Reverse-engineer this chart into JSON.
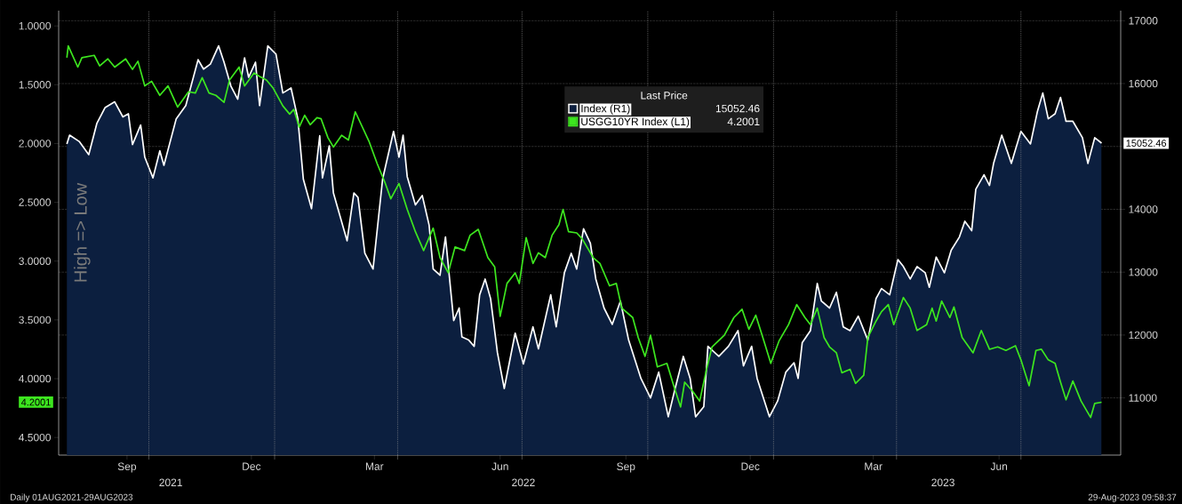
{
  "chart_data": {
    "type": "line",
    "ylabel": "High => Low",
    "legend_title": "Last Price",
    "legend": "top",
    "grid": true,
    "annotations": [
      "Daily 01AUG2021-29AUG2023",
      "29-Aug-2023 09:58:37"
    ],
    "xlim": [
      "2021-07-27",
      "2023-09-12"
    ],
    "xticks": [
      {
        "value": "2021-09-15",
        "label": "Sep"
      },
      {
        "value": "2021-10-01",
        "label": null
      },
      {
        "value": "2021-12-15",
        "label": "Dec"
      },
      {
        "value": "2022-01-01",
        "label": null
      },
      {
        "value": "2022-03-15",
        "label": "Mar"
      },
      {
        "value": "2022-04-01",
        "label": null
      },
      {
        "value": "2022-06-15",
        "label": "Jun"
      },
      {
        "value": "2022-07-01",
        "label": null
      },
      {
        "value": "2022-09-15",
        "label": "Sep"
      },
      {
        "value": "2022-10-01",
        "label": null
      },
      {
        "value": "2022-12-15",
        "label": "Dec"
      },
      {
        "value": "2023-01-01",
        "label": null
      },
      {
        "value": "2023-03-15",
        "label": "Mar"
      },
      {
        "value": "2023-04-01",
        "label": null
      },
      {
        "value": "2023-06-15",
        "label": "Jun"
      },
      {
        "value": "2023-07-01",
        "label": null
      }
    ],
    "x2lim": [
      "2021-07-27",
      "2023-09-12"
    ],
    "x2ticks": [
      {
        "value": "2021-10-17",
        "label": "2021"
      },
      {
        "value": "2022-07-02",
        "label": "2022"
      },
      {
        "value": "2023-05-05",
        "label": "2023"
      }
    ],
    "ylim": [
      4.65,
      0.87
    ],
    "yticks": [
      {
        "value": 1,
        "label": "1.0000"
      },
      {
        "value": 1.5,
        "label": "1.5000"
      },
      {
        "value": 2,
        "label": "2.0000"
      },
      {
        "value": 2.5,
        "label": "2.5000"
      },
      {
        "value": 3,
        "label": "3.0000"
      },
      {
        "value": 3.5,
        "label": "3.5000"
      },
      {
        "value": 4,
        "label": "4.0000"
      },
      {
        "value": 4.2001,
        "label": "4.2001"
      },
      {
        "value": 4.5,
        "label": "4.5000"
      }
    ],
    "y2lim": [
      10090,
      17160
    ],
    "y2ticks": [
      11000,
      12000,
      13000,
      14000,
      {
        "value": 15000,
        "label": null
      },
      {
        "value": 15052.46,
        "label": "15052.46"
      },
      16000,
      17000
    ],
    "series": [
      {
        "name": "Index (R1)",
        "type": "area",
        "axis": "y2",
        "color": "#0c1f3f",
        "x": [
          "2021-08-02",
          "2021-08-04",
          "2021-08-11",
          "2021-08-18",
          "2021-08-24",
          "2021-08-30",
          "2021-09-06",
          "2021-09-12",
          "2021-09-16",
          "2021-09-19",
          "2021-09-25",
          "2021-09-28",
          "2021-10-04",
          "2021-10-09",
          "2021-10-12",
          "2021-10-21",
          "2021-10-28",
          "2021-11-06",
          "2021-11-10",
          "2021-11-15",
          "2021-11-21",
          "2021-11-25",
          "2021-11-30",
          "2021-12-05",
          "2021-12-10",
          "2021-12-13",
          "2021-12-18",
          "2021-12-21",
          "2021-12-27",
          "2022-01-02",
          "2022-01-07",
          "2022-01-13",
          "2022-01-18",
          "2022-01-22",
          "2022-01-28",
          "2022-02-03",
          "2022-02-05",
          "2022-02-10",
          "2022-02-13",
          "2022-02-23",
          "2022-02-28",
          "2022-03-03",
          "2022-03-08",
          "2022-03-14",
          "2022-03-21",
          "2022-03-29",
          "2022-04-02",
          "2022-04-05",
          "2022-04-08",
          "2022-04-14",
          "2022-04-19",
          "2022-04-24",
          "2022-04-27",
          "2022-05-02",
          "2022-05-06",
          "2022-05-12",
          "2022-05-16",
          "2022-05-18",
          "2022-05-23",
          "2022-05-27",
          "2022-05-31",
          "2022-06-04",
          "2022-06-08",
          "2022-06-13",
          "2022-06-18",
          "2022-06-26",
          "2022-07-02",
          "2022-07-09",
          "2022-07-13",
          "2022-07-22",
          "2022-07-26",
          "2022-08-01",
          "2022-08-06",
          "2022-08-10",
          "2022-08-15",
          "2022-08-20",
          "2022-08-24",
          "2022-08-30",
          "2022-09-05",
          "2022-09-11",
          "2022-09-17",
          "2022-09-26",
          "2022-10-03",
          "2022-10-09",
          "2022-10-16",
          "2022-10-21",
          "2022-10-27",
          "2022-11-01",
          "2022-11-05",
          "2022-11-11",
          "2022-11-14",
          "2022-11-22",
          "2022-11-29",
          "2022-12-06",
          "2022-12-10",
          "2022-12-16",
          "2022-12-20",
          "2022-12-29",
          "2023-01-04",
          "2023-01-10",
          "2023-01-16",
          "2023-01-19",
          "2023-01-22",
          "2023-01-28",
          "2023-02-02",
          "2023-02-05",
          "2023-02-11",
          "2023-02-16",
          "2023-02-21",
          "2023-02-26",
          "2023-03-04",
          "2023-03-11",
          "2023-03-17",
          "2023-03-21",
          "2023-03-27",
          "2023-04-02",
          "2023-04-06",
          "2023-04-11",
          "2023-04-16",
          "2023-04-22",
          "2023-04-25",
          "2023-04-30",
          "2023-05-06",
          "2023-05-11",
          "2023-05-17",
          "2023-05-21",
          "2023-05-26",
          "2023-05-29",
          "2023-06-04",
          "2023-06-08",
          "2023-06-11",
          "2023-06-17",
          "2023-06-24",
          "2023-07-01",
          "2023-07-08",
          "2023-07-13",
          "2023-07-17",
          "2023-07-21",
          "2023-07-26",
          "2023-07-30",
          "2023-08-03",
          "2023-08-08",
          "2023-08-15",
          "2023-08-19",
          "2023-08-24",
          "2023-08-29"
        ],
        "values": [
          15040,
          15180,
          15080,
          14870,
          15370,
          15620,
          15710,
          15470,
          15520,
          15030,
          15340,
          14830,
          14500,
          14930,
          14700,
          15440,
          15650,
          16380,
          16230,
          16310,
          16600,
          16340,
          15960,
          15750,
          16410,
          16100,
          16340,
          15650,
          16600,
          16470,
          15850,
          15930,
          15440,
          14480,
          14010,
          15170,
          14500,
          15010,
          14260,
          13500,
          14260,
          14190,
          13300,
          13050,
          14480,
          15240,
          14830,
          15180,
          14520,
          14070,
          14220,
          13750,
          13050,
          12950,
          13560,
          12230,
          12430,
          11970,
          11920,
          11820,
          12640,
          12890,
          12580,
          11720,
          11150,
          12030,
          11540,
          12130,
          11780,
          12640,
          12130,
          12990,
          13300,
          13050,
          13690,
          13460,
          12890,
          12430,
          12170,
          12540,
          11920,
          11310,
          11000,
          11410,
          10700,
          11150,
          11660,
          11310,
          10700,
          10860,
          11820,
          11660,
          11820,
          12070,
          11510,
          11820,
          11310,
          10700,
          10950,
          11410,
          11560,
          11310,
          11880,
          12070,
          12820,
          12540,
          12430,
          12680,
          12130,
          12070,
          12300,
          11920,
          12580,
          12740,
          12640,
          13200,
          13090,
          12890,
          13090,
          12990,
          12760,
          13240,
          12990,
          13350,
          13560,
          13810,
          13660,
          14320,
          14550,
          14380,
          14730,
          15180,
          14730,
          15240,
          15040,
          15550,
          15850,
          15440,
          15520,
          15780,
          15400,
          15400,
          15140,
          14730,
          15140,
          15052.46
        ]
      },
      {
        "name": "USGG10YR Index (L1)",
        "type": "line",
        "axis": "y",
        "color": "#3de61f",
        "x": [
          "2021-08-02",
          "2021-08-03",
          "2021-08-10",
          "2021-08-13",
          "2021-08-22",
          "2021-08-26",
          "2021-09-01",
          "2021-09-06",
          "2021-09-14",
          "2021-09-19",
          "2021-09-23",
          "2021-09-28",
          "2021-10-03",
          "2021-10-09",
          "2021-10-15",
          "2021-10-22",
          "2021-10-30",
          "2021-11-04",
          "2021-11-09",
          "2021-11-14",
          "2021-11-19",
          "2021-11-25",
          "2021-11-29",
          "2021-12-06",
          "2021-12-10",
          "2021-12-17",
          "2021-12-21",
          "2021-12-26",
          "2021-12-31",
          "2022-01-07",
          "2022-01-12",
          "2022-01-15",
          "2022-01-19",
          "2022-01-23",
          "2022-01-27",
          "2022-02-01",
          "2022-02-04",
          "2022-02-09",
          "2022-02-13",
          "2022-02-19",
          "2022-02-24",
          "2022-03-01",
          "2022-03-11",
          "2022-03-17",
          "2022-03-23",
          "2022-03-27",
          "2022-04-02",
          "2022-04-08",
          "2022-04-14",
          "2022-04-20",
          "2022-04-27",
          "2022-05-02",
          "2022-05-08",
          "2022-05-13",
          "2022-05-20",
          "2022-05-24",
          "2022-05-30",
          "2022-06-06",
          "2022-06-11",
          "2022-06-15",
          "2022-06-20",
          "2022-06-26",
          "2022-06-29",
          "2022-07-04",
          "2022-07-09",
          "2022-07-13",
          "2022-07-18",
          "2022-07-23",
          "2022-07-28",
          "2022-07-31",
          "2022-08-04",
          "2022-08-10",
          "2022-08-14",
          "2022-08-22",
          "2022-08-27",
          "2022-09-03",
          "2022-09-08",
          "2022-09-12",
          "2022-09-20",
          "2022-09-24",
          "2022-09-29",
          "2022-10-03",
          "2022-10-08",
          "2022-10-15",
          "2022-10-20",
          "2022-10-25",
          "2022-10-28",
          "2022-11-03",
          "2022-11-08",
          "2022-11-13",
          "2022-11-17",
          "2022-11-26",
          "2022-12-03",
          "2022-12-09",
          "2022-12-14",
          "2022-12-19",
          "2022-12-25",
          "2022-12-30",
          "2023-01-05",
          "2023-01-12",
          "2023-01-18",
          "2023-01-24",
          "2023-01-28",
          "2023-02-02",
          "2023-02-07",
          "2023-02-11",
          "2023-02-16",
          "2023-02-20",
          "2023-02-26",
          "2023-03-02",
          "2023-03-08",
          "2023-03-11",
          "2023-03-17",
          "2023-03-21",
          "2023-03-26",
          "2023-03-30",
          "2023-04-06",
          "2023-04-11",
          "2023-04-16",
          "2023-04-23",
          "2023-04-27",
          "2023-04-30",
          "2023-05-04",
          "2023-05-10",
          "2023-05-13",
          "2023-05-19",
          "2023-05-27",
          "2023-06-02",
          "2023-06-08",
          "2023-06-14",
          "2023-06-20",
          "2023-06-27",
          "2023-07-01",
          "2023-07-07",
          "2023-07-12",
          "2023-07-16",
          "2023-07-21",
          "2023-07-26",
          "2023-07-30",
          "2023-08-03",
          "2023-08-08",
          "2023-08-14",
          "2023-08-19",
          "2023-08-21",
          "2023-08-24",
          "2023-08-29"
        ],
        "values": [
          1.27,
          1.17,
          1.35,
          1.27,
          1.25,
          1.34,
          1.28,
          1.35,
          1.28,
          1.37,
          1.3,
          1.51,
          1.47,
          1.59,
          1.51,
          1.69,
          1.56,
          1.57,
          1.44,
          1.57,
          1.59,
          1.65,
          1.46,
          1.35,
          1.51,
          1.4,
          1.43,
          1.46,
          1.53,
          1.68,
          1.75,
          1.71,
          1.86,
          1.76,
          1.84,
          1.78,
          1.79,
          1.95,
          2.03,
          1.93,
          1.97,
          1.73,
          1.98,
          2.17,
          2.34,
          2.47,
          2.34,
          2.56,
          2.75,
          2.91,
          2.72,
          2.97,
          3.1,
          2.88,
          2.91,
          2.78,
          2.73,
          2.97,
          3.05,
          3.47,
          3.19,
          3.1,
          3.19,
          2.8,
          3.02,
          2.93,
          2.97,
          2.78,
          2.69,
          2.56,
          2.75,
          2.76,
          2.81,
          2.97,
          3.02,
          3.21,
          3.19,
          3.4,
          3.48,
          3.65,
          3.81,
          3.63,
          3.9,
          3.87,
          4.06,
          4.24,
          4.03,
          4.11,
          4.19,
          3.92,
          3.73,
          3.63,
          3.48,
          3.41,
          3.58,
          3.46,
          3.68,
          3.87,
          3.68,
          3.54,
          3.37,
          3.48,
          3.54,
          3.4,
          3.65,
          3.73,
          3.78,
          3.95,
          3.92,
          4.04,
          3.97,
          3.65,
          3.51,
          3.43,
          3.37,
          3.54,
          3.31,
          3.4,
          3.59,
          3.54,
          3.4,
          3.51,
          3.34,
          3.48,
          3.39,
          3.65,
          3.78,
          3.59,
          3.75,
          3.73,
          3.76,
          3.72,
          3.84,
          4.06,
          3.76,
          3.75,
          3.84,
          3.87,
          4.03,
          4.18,
          4.02,
          4.19,
          4.29,
          4.33,
          4.21,
          4.2001
        ]
      }
    ]
  }
}
